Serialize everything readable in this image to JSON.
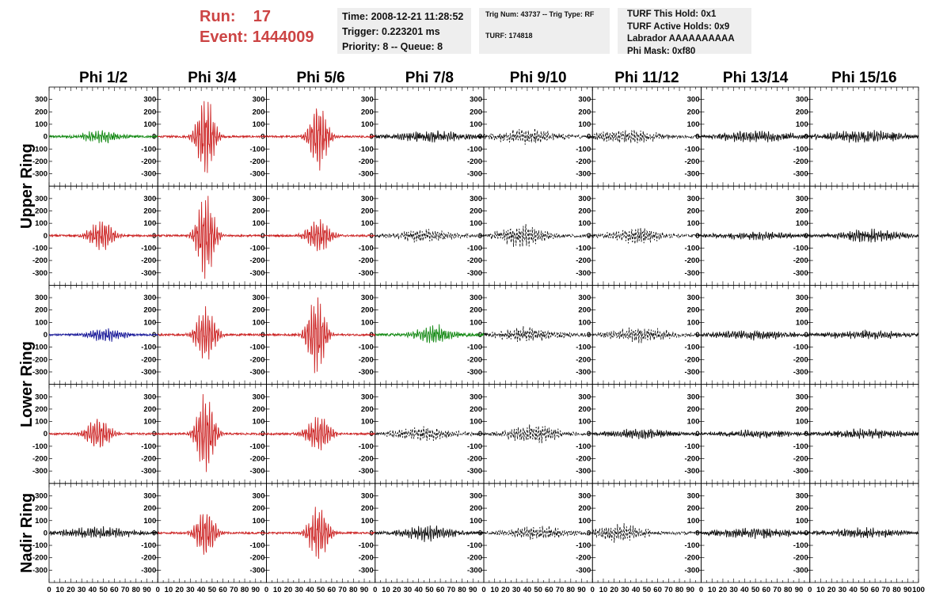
{
  "header": {
    "run_label": "Run:",
    "run_value": "17",
    "event_label": "Event:",
    "event_value": "1444009",
    "time": "Time: 2008-12-21 11:28:52",
    "trigger": "Trigger: 0.223201 ms",
    "priority": "Priority: 8 -- Queue: 8",
    "trig_num": "Trig Num: 43737 -- Trig Type: RF",
    "turf": "TURF: 174818",
    "turf_this_hold": "TURF This Hold: 0x1",
    "turf_active_holds": "TURF Active Holds: 0x9",
    "labrador": "Labrador AAAAAAAAAA",
    "phi_mask": "Phi Mask: 0xf80"
  },
  "colors": {
    "red": "#cc2222",
    "green": "#118811",
    "blue": "#1a1a99",
    "black": "#111111",
    "header_red": "#cc4444"
  },
  "chart_data": {
    "type": "line",
    "columns": [
      "Phi 1/2",
      "Phi 3/4",
      "Phi 5/6",
      "Phi 7/8",
      "Phi 9/10",
      "Phi 11/12",
      "Phi 13/14",
      "Phi 15/16"
    ],
    "rows": [
      "Upper Ring",
      "",
      "Lower Ring",
      "",
      "Nadir Ring"
    ],
    "x_range": [
      0,
      100
    ],
    "y_range": [
      -400,
      400
    ],
    "x_ticks": [
      "0",
      "10",
      "20",
      "30",
      "40",
      "50",
      "60",
      "70",
      "80",
      "90",
      "100"
    ],
    "y_ticks": [
      "300",
      "200",
      "100",
      "0",
      "-100",
      "-200",
      "-300"
    ],
    "traces": [
      [
        {
          "color": "green",
          "amp": 50,
          "center": 48,
          "width": 18,
          "noise": 18,
          "dashed": false
        },
        {
          "color": "red",
          "amp": 340,
          "center": 44,
          "width": 9,
          "noise": 15,
          "dashed": false
        },
        {
          "color": "red",
          "amp": 290,
          "center": 48,
          "width": 9,
          "noise": 15,
          "dashed": false
        },
        {
          "color": "black",
          "amp": 35,
          "center": 50,
          "width": 35,
          "noise": 22,
          "dashed": false
        },
        {
          "color": "black",
          "amp": 55,
          "center": 40,
          "width": 30,
          "noise": 25,
          "dashed": true
        },
        {
          "color": "black",
          "amp": 45,
          "center": 30,
          "width": 35,
          "noise": 20,
          "dashed": true
        },
        {
          "color": "black",
          "amp": 35,
          "center": 50,
          "width": 40,
          "noise": 22,
          "dashed": false
        },
        {
          "color": "black",
          "amp": 40,
          "center": 50,
          "width": 40,
          "noise": 22,
          "dashed": false
        }
      ],
      [
        {
          "color": "red",
          "amp": 130,
          "center": 48,
          "width": 12,
          "noise": 15,
          "dashed": false
        },
        {
          "color": "red",
          "amp": 360,
          "center": 44,
          "width": 9,
          "noise": 15,
          "dashed": false
        },
        {
          "color": "red",
          "amp": 140,
          "center": 48,
          "width": 12,
          "noise": 15,
          "dashed": false
        },
        {
          "color": "black",
          "amp": 45,
          "center": 45,
          "width": 30,
          "noise": 20,
          "dashed": true
        },
        {
          "color": "black",
          "amp": 80,
          "center": 35,
          "width": 25,
          "noise": 22,
          "dashed": true
        },
        {
          "color": "black",
          "amp": 60,
          "center": 40,
          "width": 25,
          "noise": 20,
          "dashed": true
        },
        {
          "color": "black",
          "amp": 25,
          "center": 50,
          "width": 40,
          "noise": 16,
          "dashed": false
        },
        {
          "color": "black",
          "amp": 45,
          "center": 55,
          "width": 30,
          "noise": 20,
          "dashed": false
        }
      ],
      [
        {
          "color": "blue",
          "amp": 55,
          "center": 52,
          "width": 18,
          "noise": 15,
          "dashed": false
        },
        {
          "color": "red",
          "amp": 220,
          "center": 44,
          "width": 10,
          "noise": 15,
          "dashed": false
        },
        {
          "color": "red",
          "amp": 340,
          "center": 46,
          "width": 9,
          "noise": 15,
          "dashed": false
        },
        {
          "color": "green",
          "amp": 70,
          "center": 55,
          "width": 20,
          "noise": 20,
          "dashed": false
        },
        {
          "color": "black",
          "amp": 50,
          "center": 40,
          "width": 30,
          "noise": 22,
          "dashed": true
        },
        {
          "color": "black",
          "amp": 55,
          "center": 45,
          "width": 30,
          "noise": 22,
          "dashed": true
        },
        {
          "color": "black",
          "amp": 30,
          "center": 50,
          "width": 40,
          "noise": 18,
          "dashed": false
        },
        {
          "color": "black",
          "amp": 30,
          "center": 50,
          "width": 40,
          "noise": 18,
          "dashed": false
        }
      ],
      [
        {
          "color": "red",
          "amp": 140,
          "center": 45,
          "width": 12,
          "noise": 15,
          "dashed": false
        },
        {
          "color": "red",
          "amp": 340,
          "center": 44,
          "width": 9,
          "noise": 15,
          "dashed": false
        },
        {
          "color": "red",
          "amp": 150,
          "center": 48,
          "width": 12,
          "noise": 15,
          "dashed": false
        },
        {
          "color": "black",
          "amp": 45,
          "center": 45,
          "width": 30,
          "noise": 20,
          "dashed": true
        },
        {
          "color": "black",
          "amp": 75,
          "center": 45,
          "width": 25,
          "noise": 22,
          "dashed": true
        },
        {
          "color": "black",
          "amp": 35,
          "center": 45,
          "width": 30,
          "noise": 18,
          "dashed": false
        },
        {
          "color": "black",
          "amp": 25,
          "center": 50,
          "width": 40,
          "noise": 16,
          "dashed": false
        },
        {
          "color": "black",
          "amp": 30,
          "center": 50,
          "width": 40,
          "noise": 18,
          "dashed": false
        }
      ],
      [
        {
          "color": "black",
          "amp": 40,
          "center": 45,
          "width": 35,
          "noise": 20,
          "dashed": false
        },
        {
          "color": "red",
          "amp": 200,
          "center": 44,
          "width": 10,
          "noise": 15,
          "dashed": false
        },
        {
          "color": "red",
          "amp": 230,
          "center": 48,
          "width": 10,
          "noise": 15,
          "dashed": false
        },
        {
          "color": "black",
          "amp": 60,
          "center": 48,
          "width": 25,
          "noise": 20,
          "dashed": false
        },
        {
          "color": "black",
          "amp": 45,
          "center": 50,
          "width": 30,
          "noise": 20,
          "dashed": true
        },
        {
          "color": "black",
          "amp": 70,
          "center": 25,
          "width": 25,
          "noise": 22,
          "dashed": true
        },
        {
          "color": "black",
          "amp": 35,
          "center": 50,
          "width": 40,
          "noise": 20,
          "dashed": false
        },
        {
          "color": "black",
          "amp": 30,
          "center": 50,
          "width": 40,
          "noise": 18,
          "dashed": false
        }
      ]
    ]
  }
}
